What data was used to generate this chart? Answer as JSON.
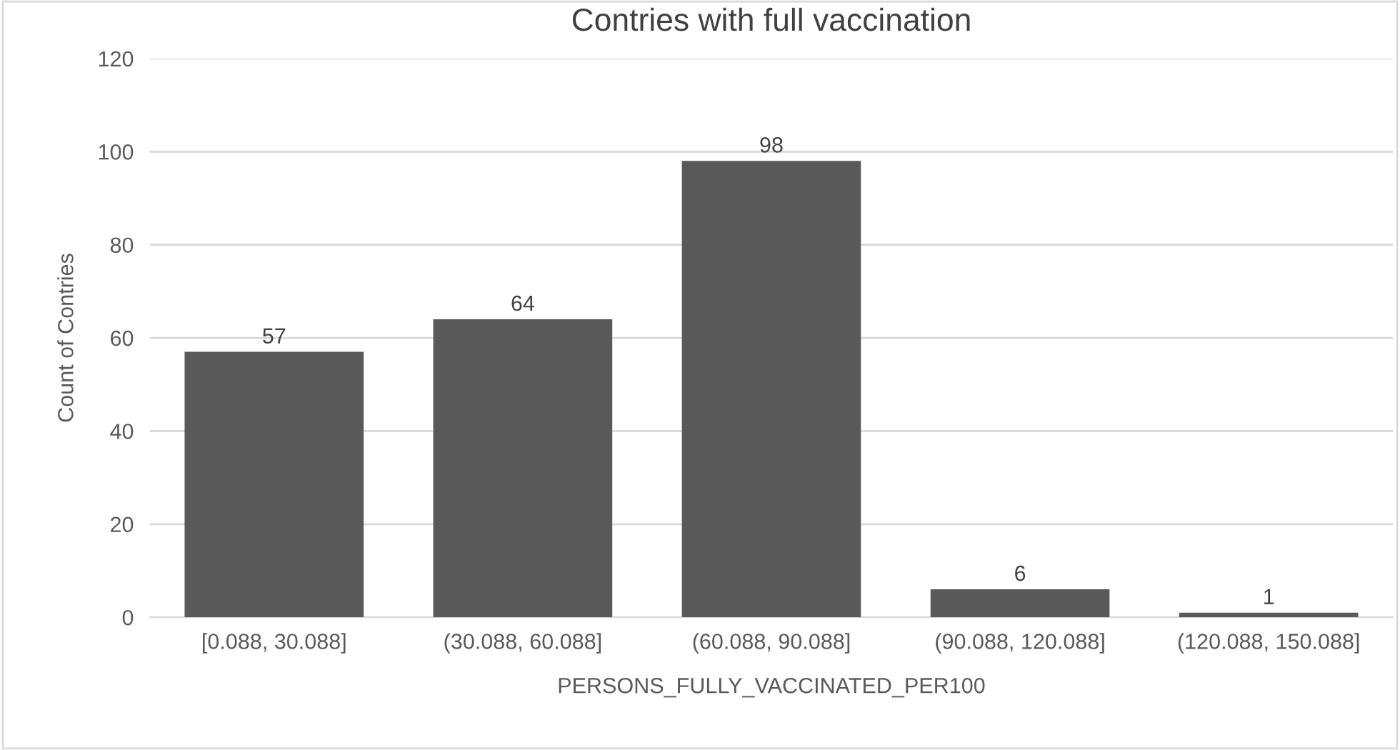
{
  "chart_data": {
    "type": "bar",
    "title": "Contries with full vaccination",
    "xlabel": "PERSONS_FULLY_VACCINATED_PER100",
    "ylabel": "Count of Contries",
    "categories": [
      "[0.088, 30.088]",
      "(30.088, 60.088]",
      "(60.088, 90.088]",
      "(90.088, 120.088]",
      "(120.088, 150.088]"
    ],
    "values": [
      57,
      64,
      98,
      6,
      1
    ],
    "color": "#595959",
    "data_labels": true,
    "ylim": [
      0,
      120
    ],
    "yticks": [
      0,
      20,
      40,
      60,
      80,
      100,
      120
    ],
    "grid": "y",
    "legend": false
  }
}
